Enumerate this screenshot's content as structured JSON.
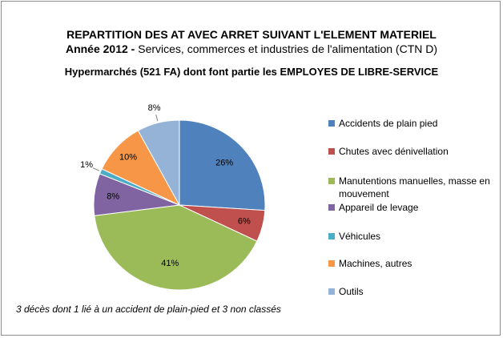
{
  "header": {
    "title": "REPARTITION DES AT AVEC ARRET SUIVANT L'ELEMENT MATERIEL",
    "year_label": "Année 2012",
    "year_separator": " - ",
    "scope": "Services, commerces et industries de l'alimentation (CTN D)",
    "subtitle": "Hypermarchés (521 FA) dont font partie les EMPLOYES DE LIBRE-SERVICE"
  },
  "footnote": "3 décès dont 1 lié à un accident de plain-pied et 3 non classés",
  "chart_data": {
    "type": "pie",
    "title": "REPARTITION DES AT AVEC ARRET SUIVANT L'ELEMENT MATERIEL",
    "subtitle": "Hypermarchés (521 FA) dont font partie les EMPLOYES DE LIBRE-SERVICE",
    "legend_position": "right",
    "value_unit": "%",
    "slices": [
      {
        "label": "Accidents de plain pied",
        "value": 26,
        "display": "26%",
        "color": "#4f81bd"
      },
      {
        "label": "Chutes avec dénivellation",
        "value": 6,
        "display": "6%",
        "color": "#c0504d"
      },
      {
        "label": "Manutentions manuelles, masse en mouvement",
        "value": 41,
        "display": "41%",
        "color": "#9bbb59"
      },
      {
        "label": "Appareil de levage",
        "value": 8,
        "display": "8%",
        "color": "#8064a2"
      },
      {
        "label": "Véhicules",
        "value": 1,
        "display": "1%",
        "color": "#4bacc6"
      },
      {
        "label": "Machines, autres",
        "value": 10,
        "display": "10%",
        "color": "#f79646"
      },
      {
        "label": "Outils",
        "value": 8,
        "display": "8%",
        "color": "#95b3d7"
      }
    ]
  }
}
